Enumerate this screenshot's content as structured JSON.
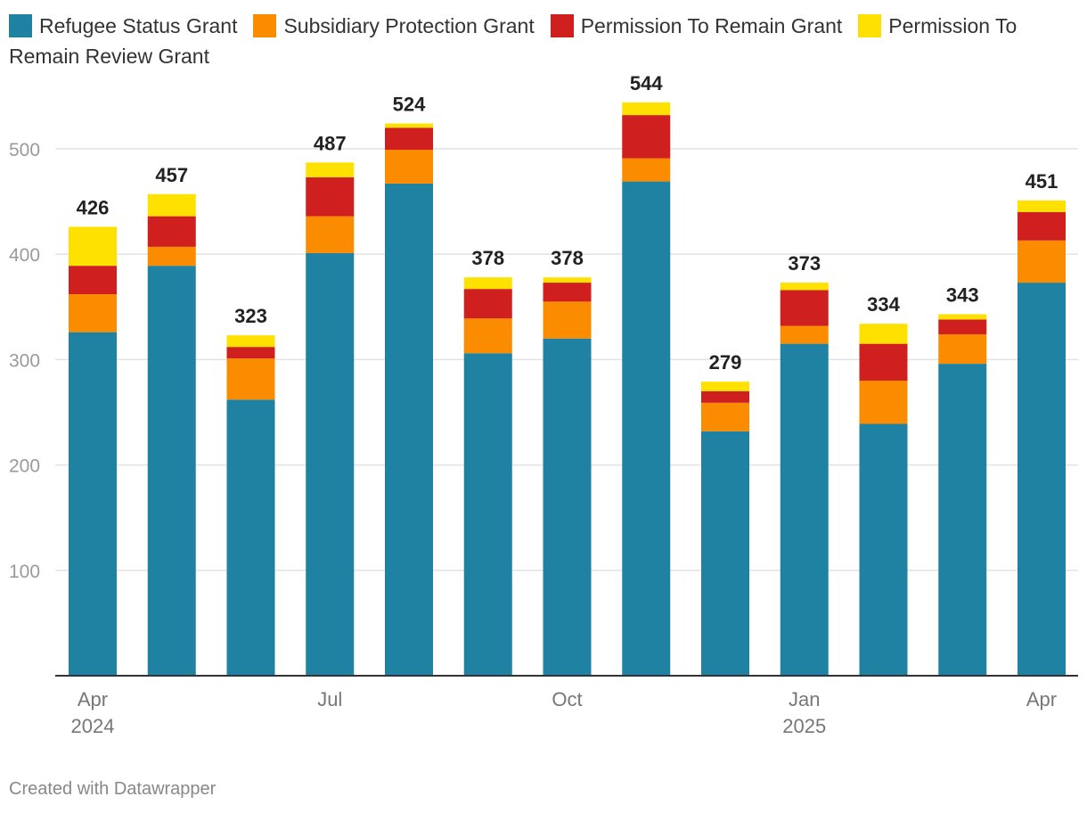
{
  "chart_data": {
    "type": "bar",
    "stacked": true,
    "categories": [
      "Apr 2024",
      "May 2024",
      "Jun 2024",
      "Jul 2024",
      "Aug 2024",
      "Sep 2024",
      "Oct 2024",
      "Nov 2024",
      "Dec 2024",
      "Jan 2025",
      "Feb 2025",
      "Mar 2025",
      "Apr 2025"
    ],
    "x_tick_labels": [
      {
        "index": 0,
        "lines": [
          "Apr",
          "2024"
        ]
      },
      {
        "index": 3,
        "lines": [
          "Jul"
        ]
      },
      {
        "index": 6,
        "lines": [
          "Oct"
        ]
      },
      {
        "index": 9,
        "lines": [
          "Jan",
          "2025"
        ]
      },
      {
        "index": 12,
        "lines": [
          "Apr"
        ]
      }
    ],
    "series": [
      {
        "name": "Refugee Status Grant",
        "color": "#1f82a3",
        "values": [
          326,
          389,
          262,
          401,
          467,
          306,
          320,
          469,
          232,
          315,
          239,
          296,
          373
        ]
      },
      {
        "name": "Subsidiary Protection Grant",
        "color": "#fb8c00",
        "values": [
          36,
          18,
          39,
          35,
          32,
          33,
          35,
          22,
          27,
          17,
          41,
          28,
          40
        ]
      },
      {
        "name": "Permission To Remain Grant",
        "color": "#d01f1f",
        "values": [
          27,
          29,
          11,
          37,
          21,
          28,
          18,
          41,
          11,
          34,
          35,
          14,
          27
        ]
      },
      {
        "name": "Permission To Remain Review Grant",
        "color": "#ffe100",
        "values": [
          37,
          21,
          11,
          14,
          4,
          11,
          5,
          12,
          9,
          7,
          19,
          5,
          11
        ]
      }
    ],
    "totals": [
      426,
      457,
      323,
      487,
      524,
      378,
      378,
      544,
      279,
      373,
      334,
      343,
      451
    ],
    "y_ticks": [
      100,
      200,
      300,
      400,
      500
    ],
    "ylim": [
      0,
      560
    ],
    "title": "",
    "xlabel": "",
    "ylabel": "",
    "grid": true,
    "legend_position": "top"
  },
  "footer": "Created with Datawrapper"
}
